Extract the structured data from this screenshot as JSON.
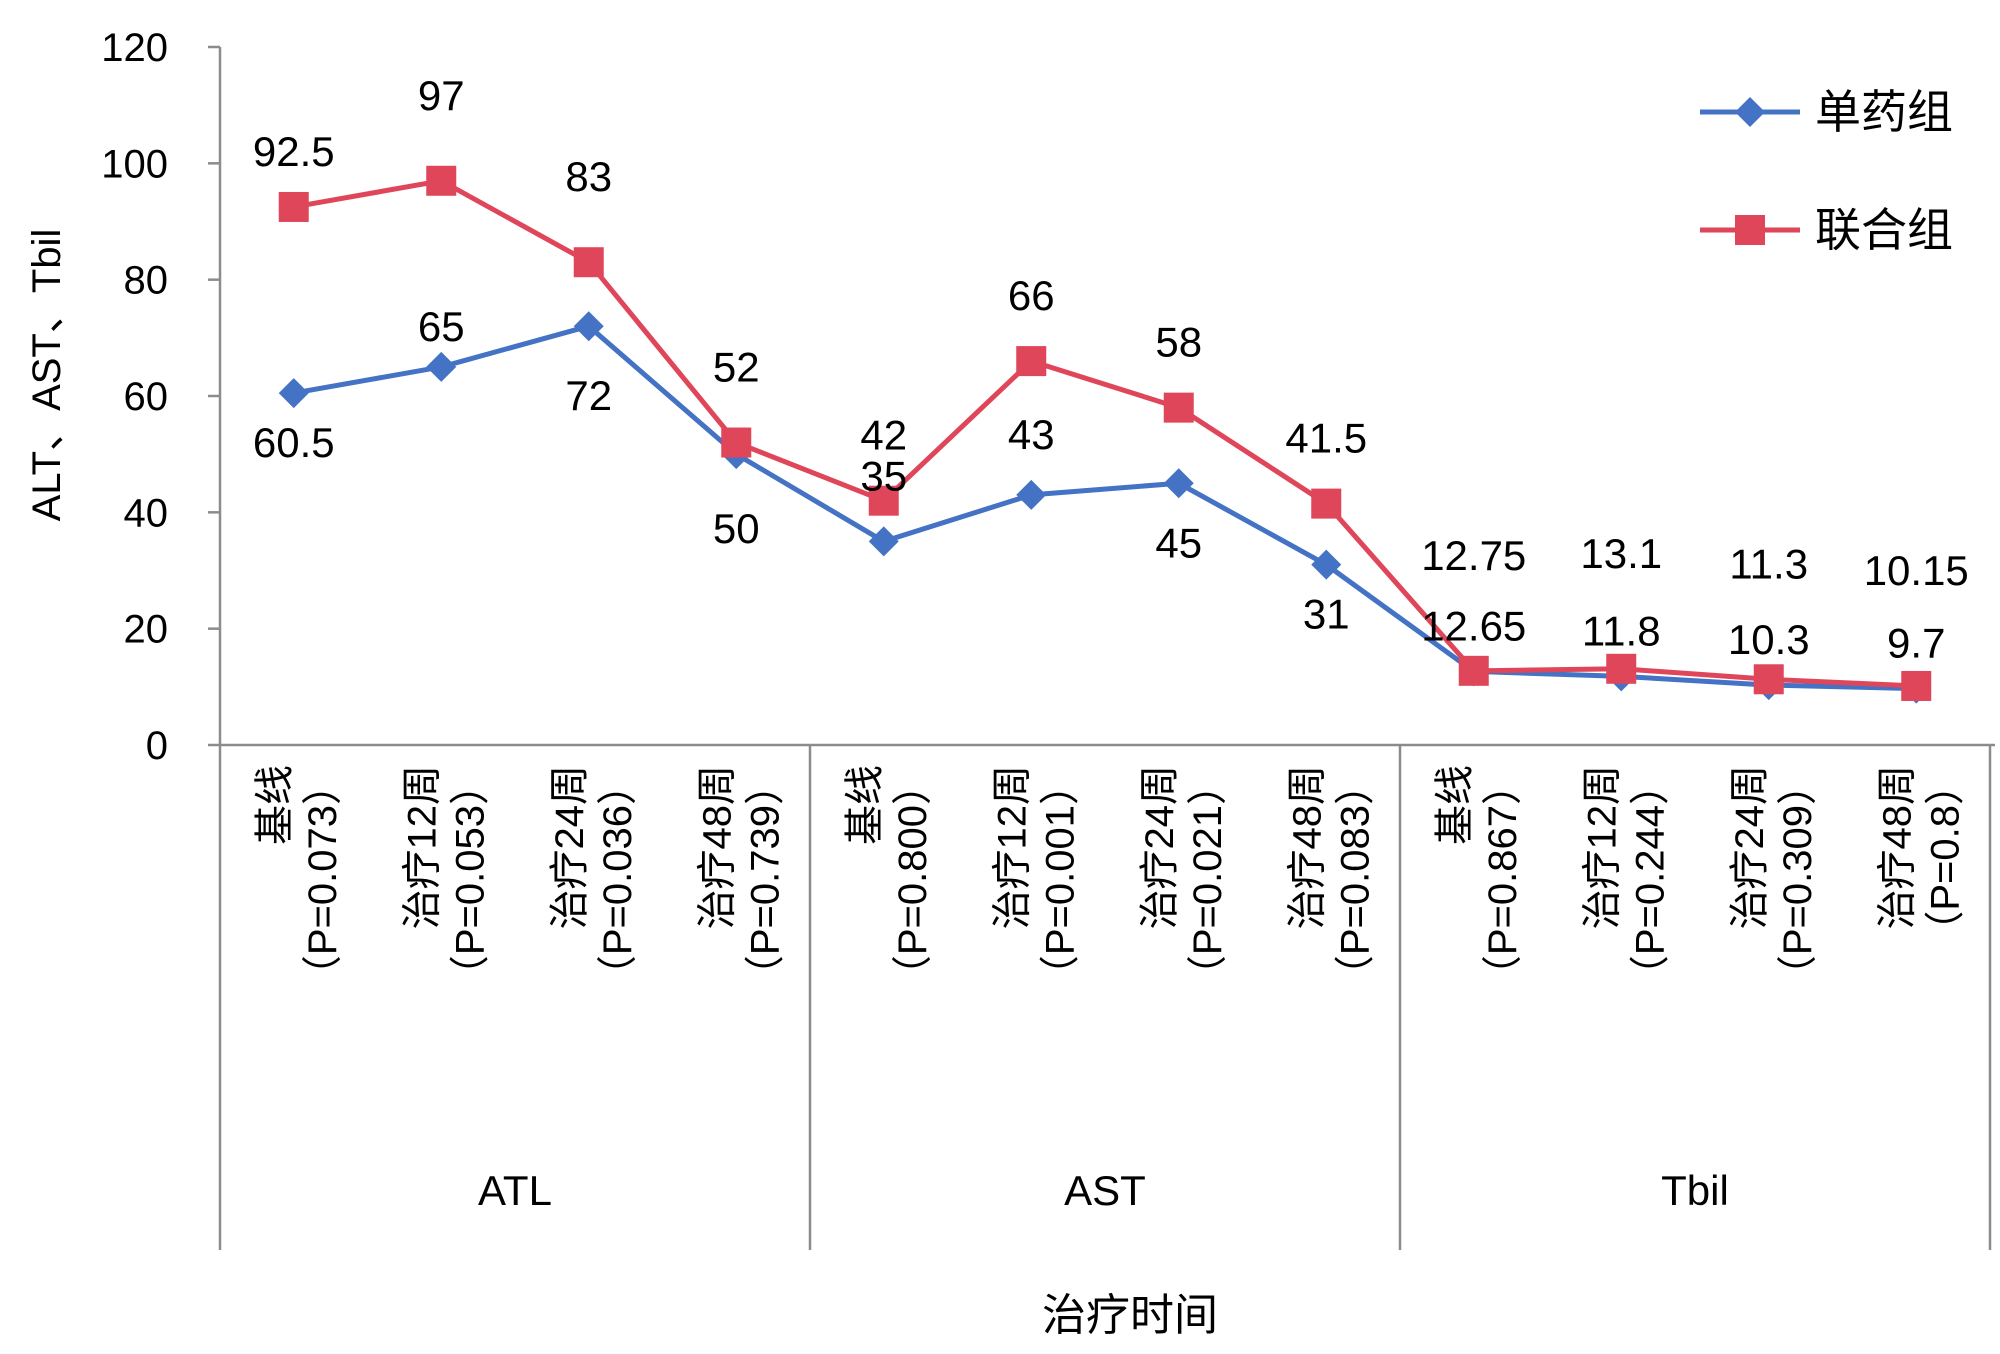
{
  "chart_data": {
    "type": "line",
    "title": "",
    "xlabel": "治疗时间",
    "ylabel": "ALT、AST、Tbil",
    "ylim": [
      0,
      120
    ],
    "yticks": [
      0,
      20,
      40,
      60,
      80,
      100,
      120
    ],
    "groups": [
      {
        "label": "ATL",
        "categories": [
          [
            "基线",
            "（P=0.073）"
          ],
          [
            "治疗12周",
            "（P=0.053）"
          ],
          [
            "治疗24周",
            "（P=0.036）"
          ],
          [
            "治疗48周",
            "（P=0.739）"
          ]
        ]
      },
      {
        "label": "AST",
        "categories": [
          [
            "基线",
            "（P=0.800）"
          ],
          [
            "治疗12周",
            "（P=0.001）"
          ],
          [
            "治疗24周",
            "（P=0.021）"
          ],
          [
            "治疗48周",
            "（P=0.083）"
          ]
        ]
      },
      {
        "label": "Tbil",
        "categories": [
          [
            "基线",
            "（P=0.867）"
          ],
          [
            "治疗12周",
            "（P=0.244）"
          ],
          [
            "治疗24周",
            "（P=0.309）"
          ],
          [
            "治疗48周",
            "（P=0.8）"
          ]
        ]
      }
    ],
    "series": [
      {
        "name": "单药组",
        "color": "#4472C4",
        "marker": "diamond",
        "values": [
          60.5,
          65,
          72,
          50,
          35,
          43,
          45,
          31,
          12.65,
          11.8,
          10.3,
          9.7
        ]
      },
      {
        "name": "联合组",
        "color": "#E0465A",
        "marker": "square",
        "values": [
          92.5,
          97,
          83,
          52,
          42,
          66,
          58,
          41.5,
          12.75,
          13.1,
          11.3,
          10.15
        ]
      }
    ],
    "legend": "top-right",
    "grid": false
  }
}
